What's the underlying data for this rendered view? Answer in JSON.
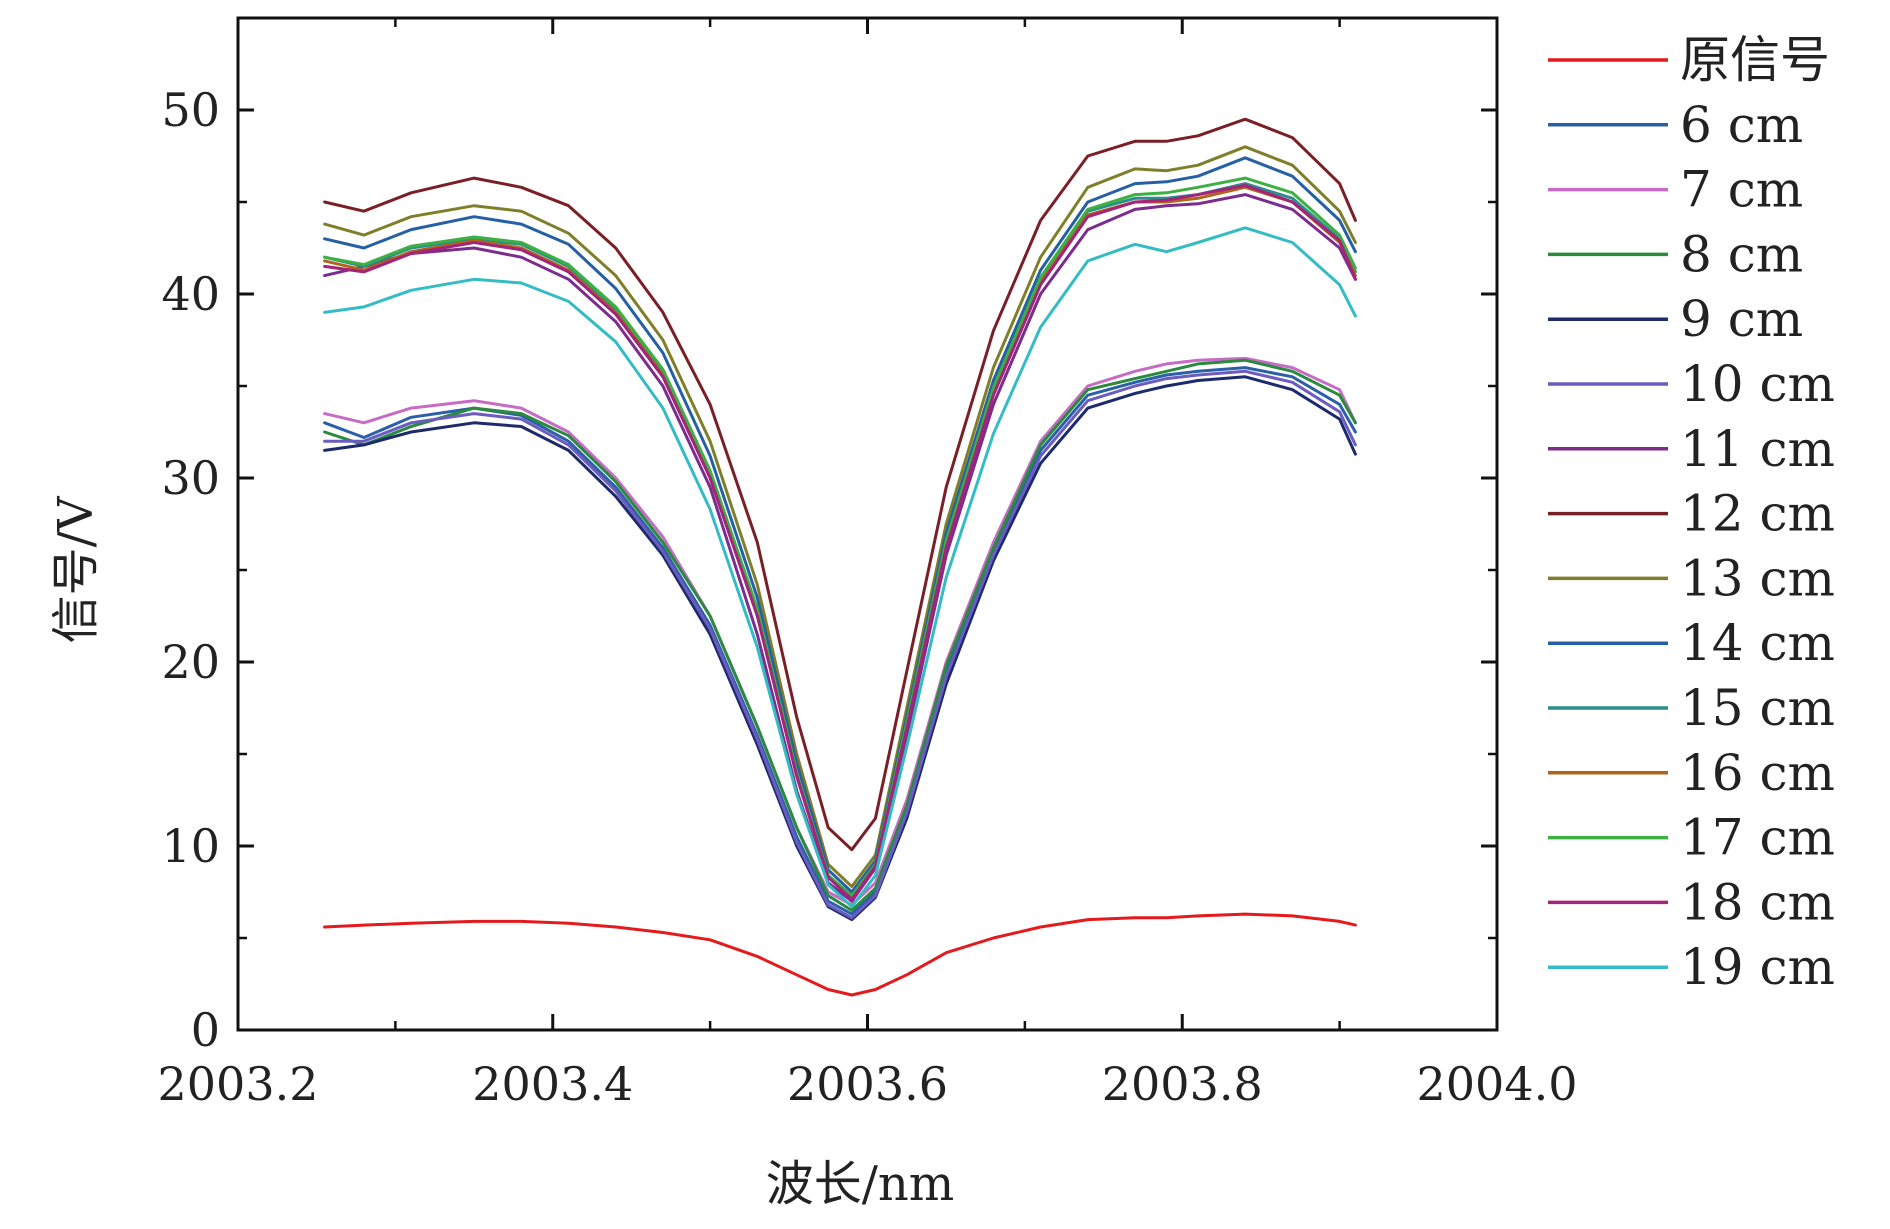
{
  "chart_data": {
    "type": "line",
    "title": "",
    "xlabel": "波长/nm",
    "ylabel": "信号/V",
    "xlim": [
      2003.2,
      2004.0
    ],
    "ylim": [
      0,
      55
    ],
    "xticks": [
      2003.2,
      2003.4,
      2003.6,
      2003.8,
      2004.0
    ],
    "xtick_labels": [
      "2003.2",
      "2003.4",
      "2003.6",
      "2003.8",
      "2004.0"
    ],
    "yticks": [
      0,
      10,
      20,
      30,
      40,
      50
    ],
    "ytick_labels": [
      "0",
      "10",
      "20",
      "30",
      "40",
      "50"
    ],
    "grid": false,
    "legend_position": "outside-right",
    "x": [
      2003.255,
      2003.28,
      2003.31,
      2003.35,
      2003.38,
      2003.41,
      2003.44,
      2003.47,
      2003.5,
      2003.53,
      2003.555,
      2003.575,
      2003.59,
      2003.605,
      2003.625,
      2003.65,
      2003.68,
      2003.71,
      2003.74,
      2003.77,
      2003.79,
      2003.81,
      2003.84,
      2003.87,
      2003.9,
      2003.91
    ],
    "series": [
      {
        "name": "原信号",
        "color": "#e41a1c",
        "values": [
          5.6,
          5.7,
          5.8,
          5.9,
          5.9,
          5.8,
          5.6,
          5.3,
          4.9,
          4.0,
          3.0,
          2.2,
          1.9,
          2.2,
          3.0,
          4.2,
          5.0,
          5.6,
          6.0,
          6.1,
          6.1,
          6.2,
          6.3,
          6.2,
          5.9,
          5.7
        ]
      },
      {
        "name": "6 cm",
        "color": "#2b5fa8",
        "values": [
          33.0,
          32.2,
          33.3,
          33.8,
          33.4,
          32.0,
          29.5,
          26.2,
          22.0,
          16.0,
          10.5,
          7.0,
          6.3,
          7.5,
          12.0,
          19.5,
          26.0,
          31.5,
          34.5,
          35.2,
          35.6,
          35.8,
          36.0,
          35.5,
          34.0,
          32.5
        ]
      },
      {
        "name": "7 cm",
        "color": "#c76cc5",
        "values": [
          33.5,
          33.0,
          33.8,
          34.2,
          33.8,
          32.5,
          30.0,
          26.8,
          22.5,
          16.5,
          11.0,
          7.5,
          6.8,
          8.0,
          12.5,
          20.0,
          26.5,
          32.0,
          35.0,
          35.8,
          36.2,
          36.4,
          36.5,
          36.0,
          34.8,
          33.0
        ]
      },
      {
        "name": "8 cm",
        "color": "#2a8a3e",
        "values": [
          32.5,
          31.8,
          32.8,
          33.8,
          33.5,
          32.3,
          29.8,
          26.5,
          22.5,
          16.5,
          11.0,
          7.3,
          6.5,
          7.7,
          12.2,
          19.8,
          26.2,
          31.8,
          34.8,
          35.4,
          35.8,
          36.2,
          36.4,
          35.8,
          34.5,
          33.0
        ]
      },
      {
        "name": "9 cm",
        "color": "#1e2a6e",
        "values": [
          31.5,
          31.8,
          32.5,
          33.0,
          32.8,
          31.5,
          29.0,
          25.8,
          21.5,
          15.5,
          10.0,
          6.7,
          6.0,
          7.2,
          11.5,
          18.8,
          25.5,
          30.8,
          33.8,
          34.6,
          35.0,
          35.3,
          35.5,
          34.8,
          33.2,
          31.3
        ]
      },
      {
        "name": "10 cm",
        "color": "#6a5cc0",
        "values": [
          32.0,
          32.0,
          33.0,
          33.5,
          33.2,
          31.8,
          29.3,
          26.0,
          21.8,
          15.8,
          10.2,
          6.8,
          6.1,
          7.3,
          11.8,
          19.2,
          25.8,
          31.2,
          34.2,
          35.0,
          35.4,
          35.6,
          35.8,
          35.2,
          33.6,
          31.8
        ]
      },
      {
        "name": "11 cm",
        "color": "#7b2c8c",
        "values": [
          41.0,
          41.5,
          42.2,
          42.5,
          42.0,
          40.8,
          38.5,
          35.0,
          29.5,
          21.5,
          13.0,
          8.0,
          7.0,
          8.8,
          16.0,
          25.8,
          34.0,
          40.0,
          43.5,
          44.6,
          44.8,
          44.9,
          45.4,
          44.6,
          42.5,
          40.8
        ]
      },
      {
        "name": "12 cm",
        "color": "#7a1f26",
        "values": [
          45.0,
          44.5,
          45.5,
          46.3,
          45.8,
          44.8,
          42.5,
          39.0,
          34.0,
          26.5,
          17.0,
          11.0,
          9.8,
          11.5,
          19.5,
          29.5,
          38.0,
          44.0,
          47.5,
          48.3,
          48.3,
          48.6,
          49.5,
          48.5,
          46.0,
          44.0
        ]
      },
      {
        "name": "13 cm",
        "color": "#7f7f2a",
        "values": [
          43.8,
          43.2,
          44.2,
          44.8,
          44.5,
          43.3,
          41.0,
          37.5,
          32.0,
          24.2,
          15.0,
          9.0,
          7.8,
          9.5,
          17.5,
          27.5,
          36.0,
          42.0,
          45.8,
          46.8,
          46.7,
          47.0,
          48.0,
          47.0,
          44.5,
          42.8
        ]
      },
      {
        "name": "14 cm",
        "color": "#2660a4",
        "values": [
          43.0,
          42.5,
          43.5,
          44.2,
          43.8,
          42.7,
          40.3,
          36.8,
          31.2,
          23.5,
          14.5,
          8.7,
          7.5,
          9.2,
          17.0,
          27.0,
          35.3,
          41.3,
          45.0,
          46.0,
          46.1,
          46.4,
          47.4,
          46.4,
          44.0,
          42.3
        ]
      },
      {
        "name": "15 cm",
        "color": "#2a8f8a",
        "values": [
          42.0,
          41.5,
          42.5,
          43.0,
          42.7,
          41.5,
          39.2,
          35.8,
          30.3,
          22.8,
          14.0,
          8.4,
          7.2,
          9.0,
          16.6,
          26.5,
          34.8,
          40.8,
          44.5,
          45.2,
          45.2,
          45.4,
          46.0,
          45.2,
          43.0,
          41.2
        ]
      },
      {
        "name": "16 cm",
        "color": "#b0651a",
        "values": [
          41.8,
          41.3,
          42.3,
          42.9,
          42.5,
          41.3,
          39.0,
          35.6,
          30.1,
          22.6,
          13.8,
          8.3,
          7.2,
          8.9,
          16.5,
          26.3,
          34.6,
          40.6,
          44.3,
          45.0,
          45.0,
          45.2,
          45.8,
          45.0,
          42.8,
          41.0
        ]
      },
      {
        "name": "17 cm",
        "color": "#3cb043",
        "values": [
          42.0,
          41.6,
          42.6,
          43.1,
          42.8,
          41.6,
          39.3,
          35.9,
          30.4,
          22.9,
          14.0,
          8.4,
          7.3,
          9.0,
          16.7,
          26.6,
          34.9,
          40.9,
          44.6,
          45.4,
          45.5,
          45.8,
          46.3,
          45.5,
          43.2,
          41.4
        ]
      },
      {
        "name": "18 cm",
        "color": "#a3247a",
        "values": [
          41.5,
          41.2,
          42.2,
          42.8,
          42.4,
          41.2,
          38.9,
          35.5,
          30.0,
          22.5,
          13.8,
          8.3,
          7.1,
          8.9,
          16.4,
          26.2,
          34.5,
          40.5,
          44.2,
          45.0,
          45.1,
          45.4,
          45.9,
          45.0,
          42.9,
          40.8
        ]
      },
      {
        "name": "19 cm",
        "color": "#34bcc4",
        "values": [
          39.0,
          39.3,
          40.2,
          40.8,
          40.6,
          39.6,
          37.4,
          33.8,
          28.3,
          20.8,
          12.8,
          7.9,
          6.7,
          8.4,
          15.4,
          24.6,
          32.4,
          38.2,
          41.8,
          42.7,
          42.3,
          42.8,
          43.6,
          42.8,
          40.5,
          38.8
        ]
      }
    ]
  }
}
